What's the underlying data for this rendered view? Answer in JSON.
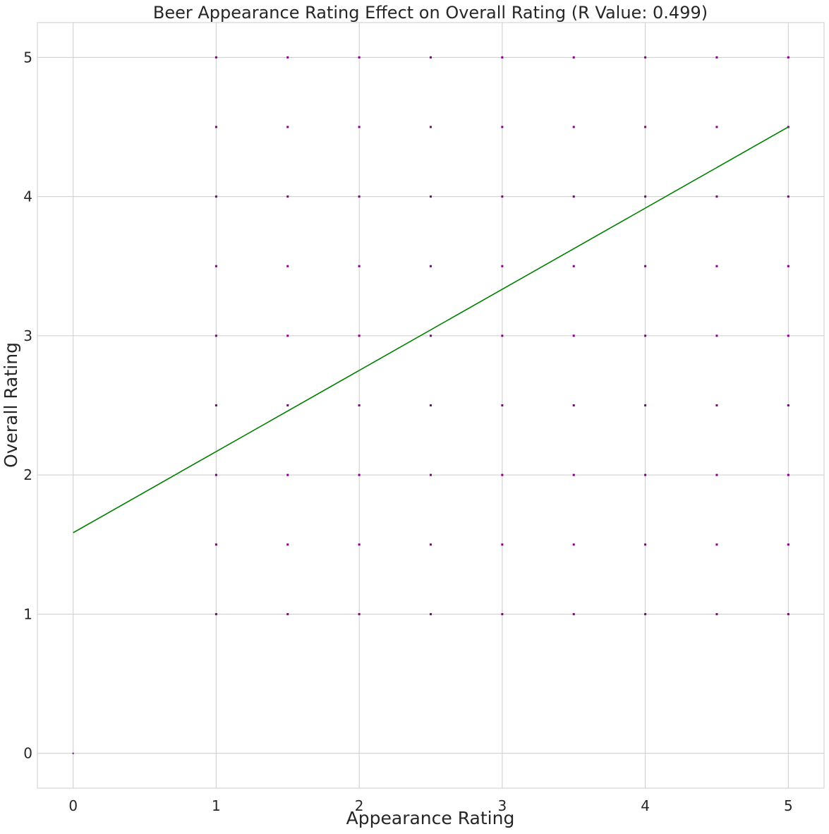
{
  "chart_data": {
    "type": "scatter",
    "title": "Beer Appearance Rating Effect on Overall Rating (R Value: 0.499)",
    "xlabel": "Appearance Rating",
    "ylabel": "Overall Rating",
    "xlim": [
      -0.25,
      5.25
    ],
    "ylim": [
      -0.25,
      5.25
    ],
    "xticks": [
      "0",
      "1",
      "2",
      "3",
      "4",
      "5"
    ],
    "yticks": [
      "0",
      "1",
      "2",
      "3",
      "4",
      "5"
    ],
    "grid": true,
    "points": {
      "color": "#800080",
      "x_values": [
        1,
        1.5,
        2,
        2.5,
        3,
        3.5,
        4,
        4.5,
        5
      ],
      "y_values": [
        1,
        1.5,
        2,
        2.5,
        3,
        3.5,
        4,
        4.5,
        5
      ],
      "extra": [
        [
          0,
          0
        ]
      ]
    },
    "regression_line": {
      "color": "#008000",
      "x": [
        0,
        5
      ],
      "y": [
        1.585,
        4.5
      ]
    },
    "colors": {
      "points": "#800080",
      "line": "#008000",
      "grid": "#cccccc",
      "text": "#262626"
    }
  }
}
